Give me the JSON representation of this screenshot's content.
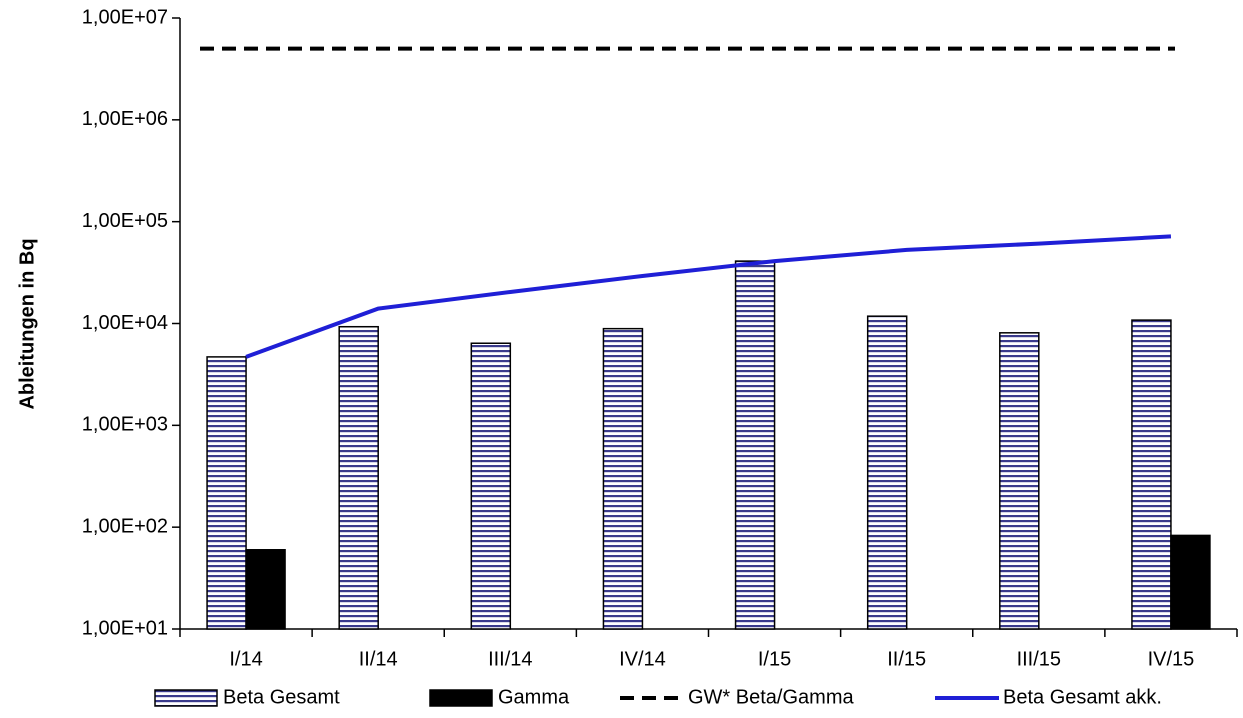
{
  "chart_data": {
    "type": "bar",
    "y_label": "Ableitungen in Bq",
    "categories": [
      "I/14",
      "II/14",
      "III/14",
      "IV/14",
      "I/15",
      "II/15",
      "III/15",
      "IV/15"
    ],
    "log_scale": true,
    "ylim": [
      10,
      10000000
    ],
    "yticks": [
      {
        "value": 10,
        "label": "1,00E+01"
      },
      {
        "value": 100,
        "label": "1,00E+02"
      },
      {
        "value": 1000,
        "label": "1,00E+03"
      },
      {
        "value": 10000,
        "label": "1,00E+04"
      },
      {
        "value": 100000,
        "label": "1,00E+05"
      },
      {
        "value": 1000000,
        "label": "1,00E+06"
      },
      {
        "value": 10000000,
        "label": "1,00E+07"
      }
    ],
    "legend": "bottom",
    "series": [
      {
        "name": "Beta Gesamt",
        "kind": "bar",
        "pattern": "hatched",
        "color": "#3a3a8c",
        "values": [
          4700,
          9300,
          6400,
          8900,
          41000,
          11800,
          8100,
          10800
        ]
      },
      {
        "name": "Gamma",
        "kind": "bar",
        "color": "#000000",
        "values": [
          60,
          null,
          null,
          null,
          null,
          null,
          null,
          83
        ]
      },
      {
        "name": "GW* Beta/Gamma",
        "kind": "line",
        "dash": true,
        "color": "#000000",
        "values": [
          5000000,
          5000000,
          5000000,
          5000000,
          5000000,
          5000000,
          5000000,
          5000000
        ]
      },
      {
        "name": "Beta Gesamt akk.",
        "kind": "line",
        "color": "#1f1fd6",
        "values": [
          4700,
          14000,
          20400,
          29300,
          41000,
          52800,
          60900,
          71700
        ]
      }
    ]
  }
}
